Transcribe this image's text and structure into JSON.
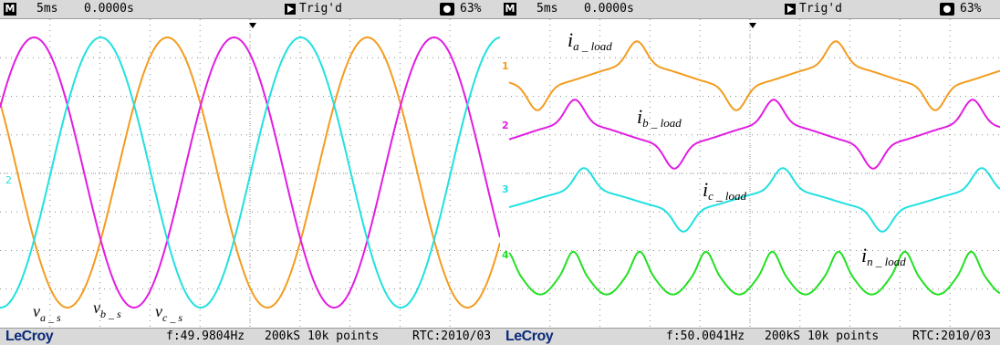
{
  "colors": {
    "phase_a": "#f39c1f",
    "phase_b": "#e11de1",
    "phase_c": "#22e0e0",
    "neutral": "#22e022",
    "grid": "#8a8a8a"
  },
  "left": {
    "header": {
      "mode_badge": "M",
      "timebase": "5ms",
      "offset": "0.0000s",
      "trigger": "Trig'd",
      "battery": "63%"
    },
    "footer": {
      "brand": "LeCroy",
      "frequency": "f:49.9804Hz",
      "sampling": "200kS 10k points",
      "rtc": "RTC:2010/03"
    }
  },
  "right": {
    "header": {
      "mode_badge": "M",
      "timebase": "5ms",
      "offset": "0.0000s",
      "trigger": "Trig'd",
      "battery": "63%"
    },
    "footer": {
      "brand": "LeCroy",
      "frequency": "f:50.0041Hz",
      "sampling": "200kS 10k points",
      "rtc": "RTC:2010/03"
    }
  },
  "chart_data": [
    {
      "type": "line",
      "title": "",
      "grid": true,
      "x_divisions": 10,
      "y_divisions": 8,
      "x_units": "ms",
      "time_per_div": "5ms",
      "series": [
        {
          "label": "v_a_s",
          "sub": "a _ s",
          "symbol": "v",
          "color": "#f39c1f",
          "waveform": "sinusoid",
          "period_ms": 20,
          "amplitude_div": 3.75,
          "phase_deg": 0
        },
        {
          "label": "v_b_s",
          "sub": "b _ s",
          "symbol": "v",
          "color": "#e11de1",
          "waveform": "sinusoid",
          "period_ms": 20,
          "amplitude_div": 3.75,
          "phase_deg": -120
        },
        {
          "label": "v_c_s",
          "sub": "c _ s",
          "symbol": "v",
          "color": "#22e0e0",
          "waveform": "sinusoid",
          "period_ms": 20,
          "amplitude_div": 3.75,
          "phase_deg": 120
        }
      ],
      "channel_marker": "2"
    },
    {
      "type": "line",
      "title": "",
      "grid": true,
      "x_divisions": 10,
      "y_divisions": 8,
      "x_units": "ms",
      "time_per_div": "5ms",
      "series": [
        {
          "label": "i_a_load",
          "symbol": "i",
          "sub": "a _ load",
          "channel": "1",
          "color": "#f39c1f",
          "waveform": "rectifier-load current",
          "period_ms": 20,
          "phase_deg": 0
        },
        {
          "label": "i_b_load",
          "symbol": "i",
          "sub": "b _ load",
          "channel": "2",
          "color": "#e11de1",
          "waveform": "rectifier-load current",
          "period_ms": 20,
          "phase_deg": -120
        },
        {
          "label": "i_c_load",
          "symbol": "i",
          "sub": "c _ load",
          "channel": "3",
          "color": "#22e0e0",
          "waveform": "rectifier-load current",
          "period_ms": 20,
          "phase_deg": 120
        },
        {
          "label": "i_n_load",
          "symbol": "i",
          "sub": "n _ load",
          "channel": "4",
          "color": "#22e022",
          "waveform": "triplen neutral current",
          "period_ms": 6.67,
          "phase_deg": 0
        }
      ]
    }
  ]
}
